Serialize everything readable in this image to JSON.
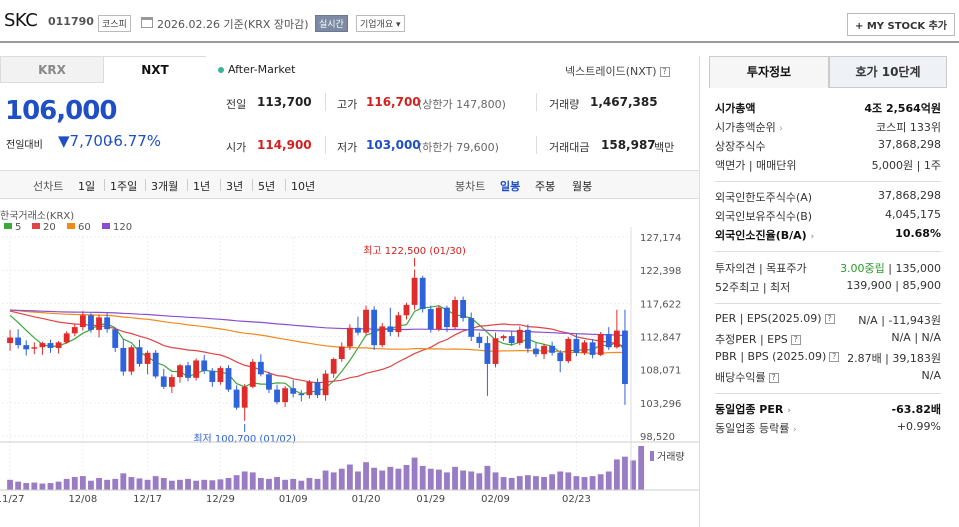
{
  "header": {
    "name": "SKC",
    "code": "011790",
    "market_badge": "코스피",
    "date_text": "2026.02.26 기준(KRX 장마감)",
    "live_badge": "실시간",
    "overview_label": "기업개요",
    "mystock_label": "+ MY STOCK 추가"
  },
  "tabs": {
    "krx": "KRX",
    "nxt": "NXT",
    "after_market": "After-Market",
    "nextrade": "넥스트레이드(NXT)"
  },
  "quote": {
    "price": "106,000",
    "change_label": "전일대비",
    "change_amt": "▼7,700",
    "change_pct": "-6.77%",
    "prev_close_label": "전일",
    "prev_close": "113,700",
    "high_label": "고가",
    "high": "116,700",
    "upper_limit": "(상한가 147,800)",
    "volume_label": "거래량",
    "volume": "1,467,385",
    "open_label": "시가",
    "open": "114,900",
    "low_label": "저가",
    "low": "103,000",
    "lower_limit": "(하한가 79,600)",
    "amount_label": "거래대금",
    "amount": "158,987",
    "amount_unit": "백만"
  },
  "periods": {
    "left": [
      "선차트",
      "1일",
      "1주일",
      "3개월",
      "1년",
      "3년",
      "5년",
      "10년"
    ],
    "right": [
      "봉차트",
      "일봉",
      "주봉",
      "월봉"
    ],
    "active_right": "일봉"
  },
  "chart_data": {
    "type": "candlestick",
    "source_label": "한국거래소(KRX)",
    "legend": [
      {
        "name": "5",
        "color": "#3aa83a"
      },
      {
        "name": "20",
        "color": "#e04545"
      },
      {
        "name": "60",
        "color": "#f08a1a"
      },
      {
        "name": "120",
        "color": "#8a4fcf"
      }
    ],
    "y_ticks": [
      "127,174",
      "122,398",
      "117,622",
      "112,847",
      "108,071",
      "103,296",
      "98,520"
    ],
    "ylim": [
      98520,
      127174
    ],
    "x_ticks": [
      "11/27",
      "12/08",
      "12/17",
      "12/29",
      "01/09",
      "01/20",
      "01/29",
      "02/09",
      "02/23"
    ],
    "high_annotation": "최고 122,500 (01/30)",
    "low_annotation": "최저 100,700 (01/02)",
    "volume_label": "거래량",
    "candles": [
      [
        111900,
        113800,
        110800,
        112700
      ],
      [
        112700,
        113900,
        111100,
        111600
      ],
      [
        111600,
        112300,
        110100,
        111000
      ],
      [
        111100,
        112000,
        110300,
        111300
      ],
      [
        111300,
        112100,
        110200,
        111900
      ],
      [
        111900,
        112400,
        110500,
        111200
      ],
      [
        111200,
        112200,
        110400,
        112000
      ],
      [
        112000,
        113600,
        111800,
        113300
      ],
      [
        113300,
        114600,
        112900,
        114200
      ],
      [
        114200,
        116500,
        113700,
        115900
      ],
      [
        115900,
        116200,
        113400,
        113800
      ],
      [
        113800,
        116000,
        112700,
        115600
      ],
      [
        115600,
        116200,
        113400,
        113900
      ],
      [
        113900,
        114100,
        110600,
        111200
      ],
      [
        111200,
        112500,
        107200,
        107800
      ],
      [
        107800,
        111600,
        107300,
        111300
      ],
      [
        111300,
        112400,
        108500,
        108900
      ],
      [
        108900,
        110800,
        107400,
        110500
      ],
      [
        110500,
        110900,
        106800,
        107100
      ],
      [
        107100,
        108200,
        105300,
        105600
      ],
      [
        105600,
        107400,
        104700,
        107000
      ],
      [
        107000,
        108900,
        106200,
        108700
      ],
      [
        108700,
        109200,
        106400,
        106900
      ],
      [
        106900,
        109700,
        106500,
        109400
      ],
      [
        109400,
        110200,
        107500,
        107900
      ],
      [
        107900,
        108300,
        105600,
        106300
      ],
      [
        106300,
        108600,
        105900,
        108300
      ],
      [
        108300,
        108700,
        104900,
        105200
      ],
      [
        105200,
        105800,
        102300,
        102600
      ],
      [
        102600,
        106000,
        100700,
        105600
      ],
      [
        105600,
        109600,
        105400,
        109200
      ],
      [
        109200,
        110300,
        107100,
        107400
      ],
      [
        107400,
        107800,
        104700,
        105200
      ],
      [
        105200,
        105900,
        103100,
        103400
      ],
      [
        103400,
        105700,
        102700,
        105400
      ],
      [
        105400,
        106600,
        104100,
        104600
      ],
      [
        104600,
        105100,
        103500,
        104400
      ],
      [
        104400,
        106600,
        103900,
        106300
      ],
      [
        106300,
        106800,
        104000,
        104400
      ],
      [
        104400,
        108000,
        103600,
        107500
      ],
      [
        107500,
        109800,
        106900,
        109600
      ],
      [
        109600,
        112000,
        109200,
        111400
      ],
      [
        111400,
        114600,
        110900,
        114100
      ],
      [
        114100,
        115700,
        113000,
        113400
      ],
      [
        113400,
        117300,
        113100,
        116700
      ],
      [
        116700,
        117200,
        110900,
        111600
      ],
      [
        111600,
        114800,
        111300,
        114300
      ],
      [
        114300,
        117000,
        112900,
        113500
      ],
      [
        113500,
        116400,
        112800,
        115900
      ],
      [
        115900,
        117700,
        115300,
        117400
      ],
      [
        117400,
        122500,
        116700,
        121300
      ],
      [
        121300,
        121600,
        116300,
        116800
      ],
      [
        116800,
        117300,
        113400,
        113900
      ],
      [
        113900,
        117300,
        113600,
        117000
      ],
      [
        117000,
        117300,
        113500,
        114200
      ],
      [
        114200,
        118600,
        113900,
        118100
      ],
      [
        118100,
        118600,
        115000,
        115500
      ],
      [
        115500,
        116300,
        112200,
        112800
      ],
      [
        112800,
        113400,
        111200,
        111900
      ],
      [
        111900,
        112900,
        104300,
        108900
      ],
      [
        108900,
        113400,
        108400,
        112600
      ],
      [
        112600,
        113100,
        112200,
        112900
      ],
      [
        112900,
        113700,
        111500,
        111900
      ],
      [
        111900,
        114300,
        111600,
        113800
      ],
      [
        113800,
        114600,
        110500,
        111100
      ],
      [
        111100,
        111900,
        109900,
        110300
      ],
      [
        110300,
        111800,
        109600,
        111500
      ],
      [
        111500,
        112100,
        110100,
        110500
      ],
      [
        110500,
        110900,
        107700,
        109300
      ],
      [
        109300,
        112800,
        109000,
        112500
      ],
      [
        112500,
        113300,
        110000,
        110500
      ],
      [
        110500,
        112300,
        110200,
        112000
      ],
      [
        112000,
        112500,
        109700,
        110200
      ],
      [
        110200,
        113500,
        110000,
        113200
      ],
      [
        113200,
        114200,
        110900,
        111300
      ],
      [
        111300,
        116700,
        111100,
        113700
      ],
      [
        113700,
        116700,
        103000,
        106000
      ]
    ],
    "volumes": [
      22,
      18,
      15,
      16,
      14,
      15,
      18,
      24,
      28,
      30,
      20,
      26,
      22,
      24,
      36,
      28,
      25,
      22,
      30,
      26,
      20,
      22,
      24,
      20,
      22,
      21,
      23,
      26,
      32,
      40,
      38,
      26,
      24,
      28,
      22,
      24,
      20,
      26,
      24,
      42,
      38,
      46,
      55,
      40,
      60,
      48,
      42,
      50,
      46,
      54,
      70,
      52,
      46,
      44,
      38,
      50,
      42,
      40,
      36,
      52,
      38,
      28,
      26,
      30,
      32,
      30,
      28,
      34,
      40,
      38,
      30,
      28,
      30,
      34,
      40,
      66,
      72,
      64,
      95
    ]
  },
  "invest": {
    "tab_a": "투자정보",
    "tab_b": "호가 10단계",
    "market_cap_label": "시가총액",
    "market_cap": "4조 2,564억원",
    "rank_label": "시가총액순위",
    "rank": "코스피 133위",
    "shares_label": "상장주식수",
    "shares": "37,868,298",
    "face_label": "액면가 | 매매단위",
    "face": "5,000원 | 1주",
    "foreign_limit_label": "외국인한도주식수(A)",
    "foreign_limit": "37,868,298",
    "foreign_hold_label": "외국인보유주식수(B)",
    "foreign_hold": "4,045,175",
    "foreign_rate_label": "외국인소진율(B/A)",
    "foreign_rate": "10.68%",
    "opinion_label": "투자의견 | 목표주가",
    "opinion": "3.00중립",
    "target": "135,000",
    "week52_label": "52주최고 | 최저",
    "week52": "139,900 | 85,900",
    "per_label": "PER | EPS(2025.09)",
    "per": "N/A | -11,943원",
    "est_per_label": "추정PER | EPS",
    "est_per": "N/A | N/A",
    "pbr_label": "PBR | BPS (2025.09)",
    "pbr": "2.87배 | 39,183원",
    "div_label": "배당수익률",
    "div": "N/A",
    "sector_per_label": "동일업종 PER",
    "sector_per": "-63.82배",
    "sector_chg_label": "동일업종 등락률",
    "sector_chg": "+0.99%"
  }
}
